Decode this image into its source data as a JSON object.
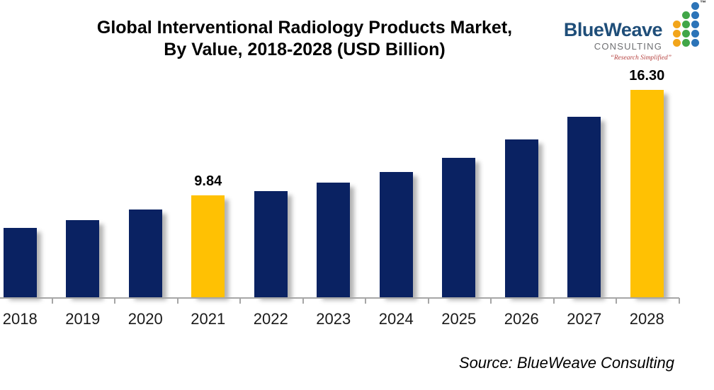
{
  "header": {
    "title_line1": "Global Interventional Radiology Products Market,",
    "title_line2": "By Value, 2018-2028 (USD Billion)"
  },
  "logo": {
    "brand": "BlueWeave",
    "subtitle": "CONSULTING",
    "tagline": "“Research Simplified”",
    "trademark": "™",
    "colors": {
      "brand_text": "#1f4e79",
      "subtitle_text": "#6e6f72",
      "tagline_text": "#b5413f"
    },
    "dot_columns": [
      {
        "name": "orange-dot-column",
        "color": "#f2a51a",
        "count": 3
      },
      {
        "name": "green-dot-column",
        "color": "#41a648",
        "count": 4
      },
      {
        "name": "blue-dot-column",
        "color": "#2c74b8",
        "count": 5
      }
    ]
  },
  "chart_data": {
    "type": "bar",
    "title": "Global Interventional Radiology Products Market, By Value, 2018-2028 (USD Billion)",
    "unit": "USD Billion",
    "categories": [
      "2018",
      "2019",
      "2020",
      "2021",
      "2022",
      "2023",
      "2024",
      "2025",
      "2026",
      "2027",
      "2028"
    ],
    "values": [
      7.85,
      8.33,
      8.98,
      9.84,
      10.1,
      10.62,
      11.27,
      12.14,
      13.27,
      14.66,
      16.3
    ],
    "data_labels": [
      "",
      "",
      "",
      "9.84",
      "",
      "",
      "",
      "",
      "",
      "",
      "16.30"
    ],
    "labeled_points": {
      "2021": "9.84",
      "2028": "16.30"
    },
    "highlight_indices": [
      3,
      10
    ],
    "bar_color": "#0a2262",
    "highlight_color": "#ffc103",
    "axis_color": "#a6a6a6",
    "y_baseline_value": 3.6,
    "ylim": [
      3.6,
      16.8
    ],
    "grid": false,
    "legend": false,
    "y_axis_visible": false
  },
  "source": {
    "text": "Source: BlueWeave Consulting"
  }
}
